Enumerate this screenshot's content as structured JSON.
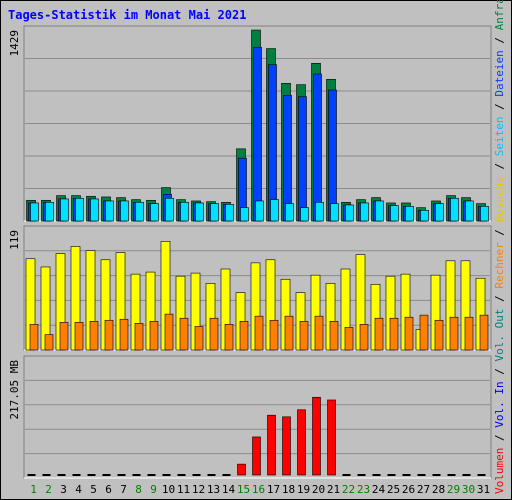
{
  "title": "Tages-Statistik im Monat Mai 2021",
  "colors": {
    "background": "#c0c0c0",
    "panel": "#c0c0c0",
    "grid": "#8c8c8c",
    "title": "#0000ff",
    "anfragen": "#008040",
    "dateien": "#0040ff",
    "seiten": "#00e0ff",
    "besuche": "#ffff00",
    "rechner": "#ff8000",
    "vol_in": "#0000ff",
    "vol_out": "#008080",
    "volumen": "#ff0000",
    "weekday": "#000000",
    "weekend": "#008000"
  },
  "right_labels": {
    "top": [
      {
        "text": "Anfragen",
        "color": "#008040"
      },
      {
        "text": "Dateien",
        "color": "#0040ff"
      },
      {
        "text": "Seiten",
        "color": "#00c0ff"
      },
      {
        "text": "Besuche",
        "color": "#e6c800"
      },
      {
        "text": "Rechner",
        "color": "#ff8000"
      },
      {
        "text": "Vol. Out",
        "color": "#008080"
      },
      {
        "text": "Vol. In",
        "color": "#0000ff"
      },
      {
        "text": "Volumen",
        "color": "#ff0000"
      }
    ],
    "separator": " / "
  },
  "chart_data": [
    {
      "type": "bar",
      "panel": "top",
      "ymax_label": "1429",
      "ylim": [
        0,
        1429
      ],
      "categories": [
        "1",
        "2",
        "3",
        "4",
        "5",
        "6",
        "7",
        "8",
        "9",
        "10",
        "11",
        "12",
        "13",
        "14",
        "15",
        "16",
        "17",
        "18",
        "19",
        "20",
        "21",
        "22",
        "23",
        "24",
        "25",
        "26",
        "27",
        "28",
        "29",
        "30",
        "31"
      ],
      "weekend_days": [
        "1",
        "2",
        "8",
        "9",
        "15",
        "16",
        "22",
        "23",
        "29",
        "30"
      ],
      "series": [
        {
          "name": "Anfragen",
          "values": [
            155,
            155,
            190,
            190,
            185,
            180,
            175,
            160,
            155,
            250,
            160,
            150,
            145,
            140,
            540,
            1429,
            1290,
            1030,
            1020,
            1180,
            1060,
            140,
            160,
            175,
            135,
            135,
            100,
            150,
            190,
            175,
            130
          ]
        },
        {
          "name": "Dateien",
          "values": [
            135,
            140,
            165,
            170,
            165,
            150,
            150,
            140,
            130,
            200,
            140,
            135,
            130,
            125,
            470,
            1300,
            1170,
            940,
            930,
            1100,
            980,
            120,
            135,
            150,
            115,
            110,
            80,
            130,
            170,
            150,
            110
          ]
        },
        {
          "name": "Seiten",
          "values": [
            135,
            140,
            165,
            170,
            165,
            150,
            150,
            140,
            130,
            170,
            140,
            135,
            130,
            125,
            100,
            150,
            160,
            130,
            100,
            140,
            130,
            120,
            135,
            150,
            115,
            110,
            80,
            130,
            170,
            150,
            110
          ]
        }
      ]
    },
    {
      "type": "bar",
      "panel": "middle",
      "ymax_label": "119",
      "ylim": [
        0,
        119
      ],
      "categories": [
        "1",
        "2",
        "3",
        "4",
        "5",
        "6",
        "7",
        "8",
        "9",
        "10",
        "11",
        "12",
        "13",
        "14",
        "15",
        "16",
        "17",
        "18",
        "19",
        "20",
        "21",
        "22",
        "23",
        "24",
        "25",
        "26",
        "27",
        "28",
        "29",
        "30",
        "31"
      ],
      "series": [
        {
          "name": "Besuche",
          "values": [
            89,
            81,
            94,
            101,
            97,
            88,
            95,
            74,
            76,
            106,
            72,
            75,
            65,
            79,
            56,
            85,
            88,
            69,
            56,
            73,
            65,
            79,
            93,
            64,
            72,
            74,
            20,
            73,
            87,
            87,
            70
          ]
        },
        {
          "name": "Rechner",
          "values": [
            25,
            15,
            27,
            27,
            28,
            29,
            30,
            26,
            28,
            35,
            31,
            23,
            31,
            25,
            28,
            33,
            29,
            33,
            28,
            33,
            28,
            22,
            25,
            31,
            31,
            32,
            34,
            29,
            32,
            32,
            34
          ]
        }
      ]
    },
    {
      "type": "bar",
      "panel": "bottom",
      "ymax_label": "217.05 MB",
      "ylim": [
        0,
        217.05
      ],
      "categories": [
        "1",
        "2",
        "3",
        "4",
        "5",
        "6",
        "7",
        "8",
        "9",
        "10",
        "11",
        "12",
        "13",
        "14",
        "15",
        "16",
        "17",
        "18",
        "19",
        "20",
        "21",
        "22",
        "23",
        "24",
        "25",
        "26",
        "27",
        "28",
        "29",
        "30",
        "31"
      ],
      "series": [
        {
          "name": "Volumen",
          "values": [
            0,
            0,
            0,
            0,
            0,
            0,
            0,
            0,
            0,
            0,
            0,
            0,
            0,
            0,
            20,
            70,
            110,
            107,
            120,
            143,
            138,
            0,
            0,
            0,
            0,
            0,
            0,
            0,
            0,
            0,
            0
          ]
        }
      ]
    }
  ]
}
